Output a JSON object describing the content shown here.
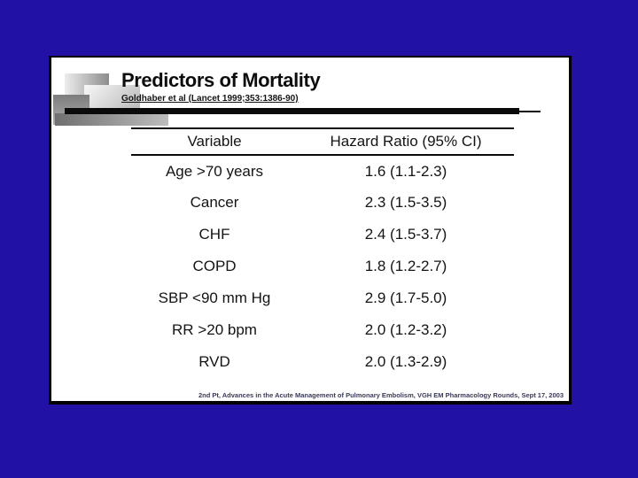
{
  "slide": {
    "title": "Predictors of Mortality",
    "subtitle": "Goldhaber et al (Lancet 1999;353:1386-90)",
    "table": {
      "columns": [
        "Variable",
        "Hazard Ratio (95% CI)"
      ],
      "rows": [
        {
          "variable": "Age >70 years",
          "hazard_ratio": "1.6 (1.1-2.3)"
        },
        {
          "variable": "Cancer",
          "hazard_ratio": "2.3 (1.5-3.5)"
        },
        {
          "variable": "CHF",
          "hazard_ratio": "2.4 (1.5-3.7)"
        },
        {
          "variable": "COPD",
          "hazard_ratio": "1.8 (1.2-2.7)"
        },
        {
          "variable": "SBP <90 mm Hg",
          "hazard_ratio": "2.9 (1.7-5.0)"
        },
        {
          "variable": "RR >20 bpm",
          "hazard_ratio": "2.0 (1.2-3.2)"
        },
        {
          "variable": "RVD",
          "hazard_ratio": "2.0 (1.3-2.9)"
        }
      ]
    },
    "footer": "2nd Pt, Advances in the Acute Management of Pulmonary Embolism, VGH EM Pharmacology Rounds, Sept 17, 2003"
  },
  "colors": {
    "background": "#2111a5",
    "slide_background": "#ffffff",
    "slide_border": "#000000",
    "text": "#141414",
    "accent_bar": "#0a0a0a"
  }
}
